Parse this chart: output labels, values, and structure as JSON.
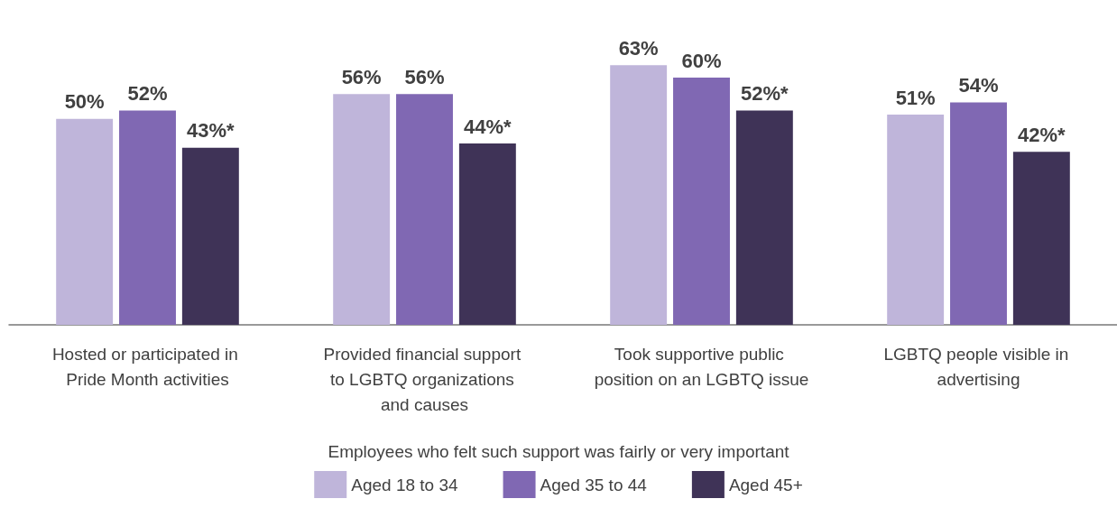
{
  "chart_data": {
    "type": "bar",
    "categories": [
      "Hosted or participated in Pride Month activities",
      "Provided financial support to LGBTQ organizations and causes",
      "Took supportive public position on an LGBTQ issue",
      "LGBTQ people visible in advertising"
    ],
    "legend_title": "Employees who felt such support was fairly or very important",
    "legend": "bottom",
    "series": [
      {
        "name": "Aged 18 to 34",
        "color": "#bfb5da",
        "values": [
          50,
          56,
          63,
          51
        ],
        "value_labels": [
          "50%",
          "56%",
          "63%",
          "51%"
        ]
      },
      {
        "name": "Aged 35 to 44",
        "color": "#8068b3",
        "values": [
          52,
          56,
          60,
          54
        ],
        "value_labels": [
          "52%",
          "56%",
          "60%",
          "54%"
        ]
      },
      {
        "name": "Aged 45+",
        "color": "#3f3357",
        "values": [
          43,
          44,
          52,
          42
        ],
        "value_labels": [
          "43%*",
          "44%*",
          "52%*",
          "42%*"
        ]
      }
    ]
  }
}
